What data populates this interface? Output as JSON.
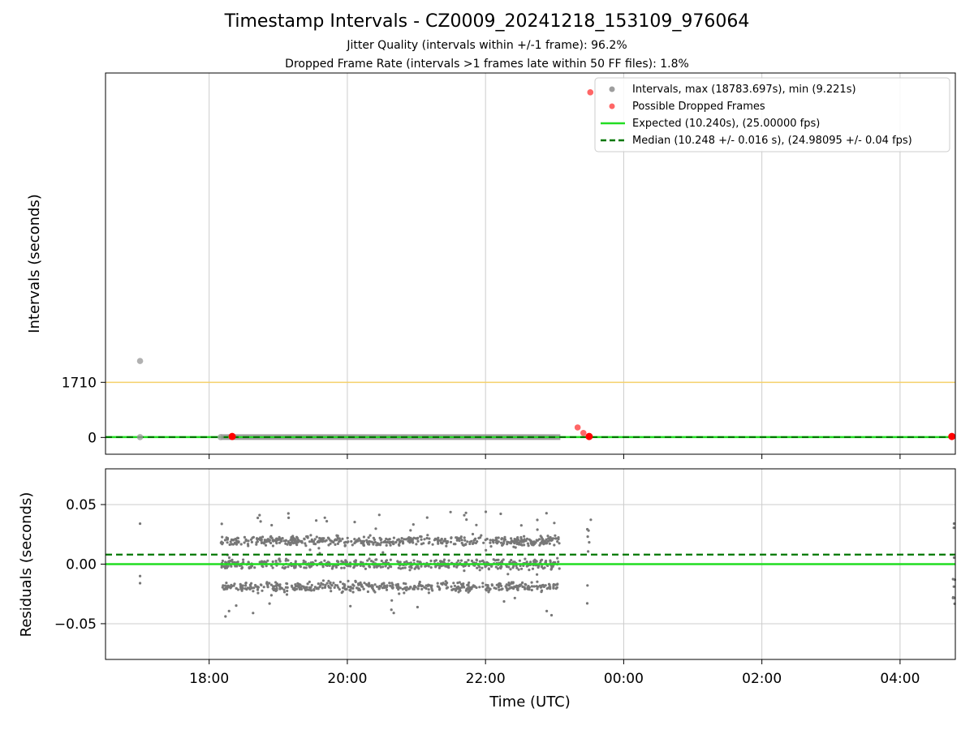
{
  "figure": {
    "title": "Timestamp Intervals - CZ0009_20241218_153109_976064",
    "subtitle_1": "Jitter Quality (intervals within +/-1 frame): 96.2%",
    "subtitle_2": "Dropped Frame Rate (intervals >1 frames late within 50 FF files): 1.8%"
  },
  "chart_data": [
    {
      "type": "scatter",
      "panel": "top",
      "ylabel": "Intervals (seconds)",
      "x_axis": "shared time axis (UTC)",
      "ylim": [
        -520,
        11300
      ],
      "yticks": [
        0,
        1710
      ],
      "grid": "vertical",
      "legend_position": "top-right",
      "reference_line": {
        "y": 1710,
        "color": "#f5d06a"
      },
      "series": [
        {
          "name": "Intervals, max (18783.697s), min (9.221s)",
          "kind": "points",
          "color": "#9e9e9e",
          "points": [
            [
              "17:00",
              2370
            ],
            [
              "17:00",
              10.24
            ],
            [
              "18:10",
              10.24
            ]
          ]
        },
        {
          "name": "Possible Dropped Frames",
          "kind": "points",
          "color": "#ff0000",
          "points": [
            [
              "18:20",
              30
            ],
            [
              "23:20",
              310
            ],
            [
              "23:25",
              140
            ],
            [
              "23:30",
              30
            ],
            [
              "23:31",
              10700
            ],
            [
              "04:45",
              30
            ]
          ]
        },
        {
          "name": "Expected (10.240s), (25.00000 fps)",
          "kind": "hline",
          "y": 10.24,
          "color": "#22dd22",
          "style": "solid"
        },
        {
          "name": "Median (10.248 +/- 0.016 s), (24.98095 +/- 0.04 fps)",
          "kind": "hline",
          "y": 10.248,
          "color": "#007700",
          "style": "dashed"
        }
      ]
    },
    {
      "type": "scatter",
      "panel": "bottom",
      "ylabel": "Residuals (seconds)",
      "xlabel": "Time (UTC)",
      "ylim": [
        -0.08,
        0.08
      ],
      "yticks": [
        "0.05",
        "0.00",
        "−0.05"
      ],
      "xticks": [
        "18:00",
        "20:00",
        "22:00",
        "00:00",
        "02:00",
        "04:00"
      ],
      "xlim": [
        "16:30",
        "04:48"
      ],
      "grid": "both",
      "series": [
        {
          "kind": "hline",
          "y": 0.0,
          "color": "#22dd22",
          "style": "solid"
        },
        {
          "kind": "hline",
          "y": 0.008,
          "color": "#007700",
          "style": "dashed"
        },
        {
          "kind": "points",
          "color": "#777777",
          "residual_bands": [
            -0.019,
            0.0,
            0.0195
          ],
          "segments": [
            {
              "start": "18:10",
              "end": "23:05",
              "count": 1500,
              "spread": 0.022
            },
            {
              "start": "23:28",
              "end": "23:32",
              "count": 8,
              "spread": 0.04
            },
            {
              "start": "04:46",
              "end": "04:48",
              "count": 10,
              "spread": 0.045
            }
          ],
          "isolated": [
            [
              "17:00",
              0.034
            ],
            [
              "17:00",
              -0.01
            ],
            [
              "17:00",
              -0.016
            ]
          ]
        }
      ]
    }
  ]
}
